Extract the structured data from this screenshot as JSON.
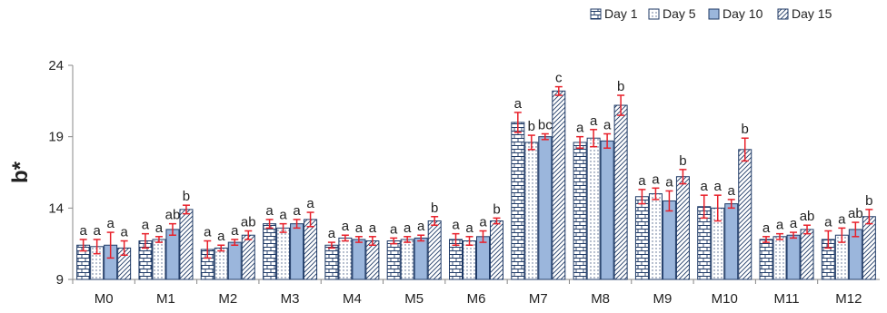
{
  "chart_data": {
    "type": "bar",
    "title": "",
    "xlabel": "",
    "ylabel": "b*",
    "ylim": [
      9,
      24
    ],
    "yticks": [
      9,
      14,
      19,
      24
    ],
    "grid": false,
    "legend_position": "top-right",
    "categories": [
      "M0",
      "M1",
      "M2",
      "M3",
      "M4",
      "M5",
      "M6",
      "M7",
      "M8",
      "M9",
      "M10",
      "M11",
      "M12"
    ],
    "series": [
      {
        "name": "Day 1",
        "pattern": "brick",
        "values": [
          11.4,
          11.7,
          11.1,
          12.9,
          11.4,
          11.7,
          11.8,
          20.0,
          18.6,
          14.8,
          14.1,
          11.8,
          11.8
        ],
        "errors": [
          0.4,
          0.5,
          0.6,
          0.3,
          0.2,
          0.2,
          0.4,
          0.7,
          0.4,
          0.5,
          0.8,
          0.2,
          0.6
        ],
        "labels": [
          "a",
          "a",
          "a",
          "a",
          "a",
          "a",
          "a",
          "a",
          "a",
          "a",
          "a",
          "a",
          "a"
        ]
      },
      {
        "name": "Day 5",
        "pattern": "dots",
        "values": [
          11.3,
          11.8,
          11.2,
          12.6,
          11.9,
          11.8,
          11.7,
          18.6,
          18.9,
          15.0,
          14.0,
          12.0,
          12.1
        ],
        "errors": [
          0.5,
          0.2,
          0.2,
          0.3,
          0.2,
          0.2,
          0.3,
          0.5,
          0.6,
          0.4,
          0.9,
          0.2,
          0.5
        ],
        "labels": [
          "a",
          "a",
          "a",
          "a",
          "a",
          "a",
          "a",
          "b",
          "a",
          "a",
          "a",
          "a",
          "a"
        ]
      },
      {
        "name": "Day 10",
        "pattern": "solid",
        "values": [
          11.4,
          12.5,
          11.6,
          12.9,
          11.8,
          11.9,
          12.0,
          19.0,
          18.7,
          14.5,
          14.3,
          12.1,
          12.5
        ],
        "errors": [
          0.9,
          0.4,
          0.2,
          0.3,
          0.2,
          0.2,
          0.4,
          0.2,
          0.5,
          0.7,
          0.3,
          0.2,
          0.5
        ],
        "labels": [
          "a",
          "ab",
          "a",
          "a",
          "a",
          "a",
          "a",
          "bc",
          "a",
          "a",
          "a",
          "a",
          "ab"
        ]
      },
      {
        "name": "Day 15",
        "pattern": "hatch",
        "values": [
          11.2,
          13.9,
          12.1,
          13.2,
          11.7,
          13.1,
          13.1,
          22.2,
          21.2,
          16.2,
          18.1,
          12.5,
          13.4
        ],
        "errors": [
          0.5,
          0.3,
          0.3,
          0.5,
          0.3,
          0.3,
          0.2,
          0.3,
          0.7,
          0.5,
          0.8,
          0.3,
          0.5
        ],
        "labels": [
          "a",
          "b",
          "ab",
          "a",
          "a",
          "b",
          "b",
          "c",
          "b",
          "b",
          "b",
          "ab",
          "b"
        ]
      }
    ],
    "colors": {
      "bar_outline": "#1f3a66",
      "bar_fill": "#9bb6dc",
      "pattern_fill": "#ffffff",
      "error_bar": "#e8202a",
      "axis": "#888888"
    }
  }
}
